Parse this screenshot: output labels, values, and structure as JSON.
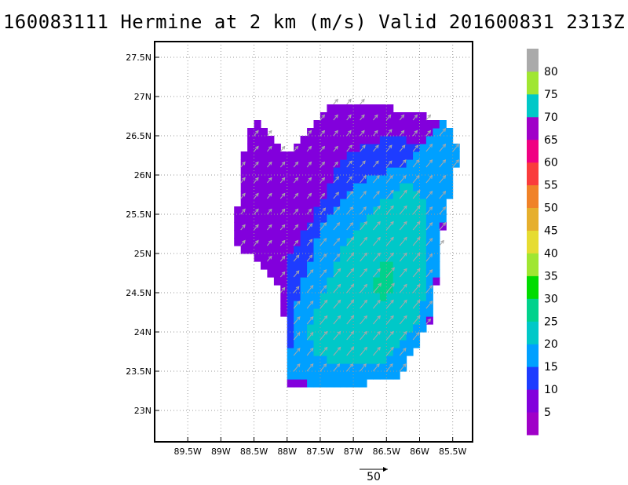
{
  "title": "160083111 Hermine at 2 km (m/s) Valid 201600831 2313Z",
  "chart_data": {
    "type": "heatmap",
    "title": "160083111 Hermine at 2 km (m/s) Valid 201600831 2313Z",
    "x_ticks": [
      "89.5W",
      "89W",
      "88.5W",
      "88W",
      "87.5W",
      "87W",
      "86.5W",
      "86W",
      "85.5W"
    ],
    "y_ticks": [
      "27.5N",
      "27N",
      "26.5N",
      "26N",
      "25.5N",
      "25N",
      "24.5N",
      "24N",
      "23.5N",
      "23N"
    ],
    "xlim": [
      -90,
      -85.2
    ],
    "ylim": [
      22.6,
      27.7
    ],
    "grid": true,
    "colorbar": {
      "labels": [
        "5",
        "10",
        "15",
        "20",
        "25",
        "30",
        "35",
        "40",
        "45",
        "50",
        "55",
        "60",
        "65",
        "70",
        "75",
        "80"
      ],
      "colors": [
        "#a000c8",
        "#8200dc",
        "#1e3cff",
        "#00a0ff",
        "#00c8c8",
        "#00d28c",
        "#00dc00",
        "#a0e632",
        "#e6dc32",
        "#e6af2d",
        "#f08228",
        "#fa3c3c",
        "#f00082",
        "#a000c8",
        "#00c8c8",
        "#a0e632",
        "#aaaaaa"
      ]
    },
    "reference_vector": {
      "label": "50",
      "speed": 50
    },
    "regions": [
      {
        "name": "outer",
        "speed": 7,
        "polygon": [
          [
            -88.8,
            25.1
          ],
          [
            -88.7,
            26.2
          ],
          [
            -88.5,
            26.7
          ],
          [
            -88.0,
            26.3
          ],
          [
            -87.6,
            26.7
          ],
          [
            -87.3,
            26.95
          ],
          [
            -86.8,
            26.9
          ],
          [
            -86.0,
            26.8
          ],
          [
            -85.6,
            26.6
          ],
          [
            -85.5,
            26.2
          ],
          [
            -85.7,
            25.0
          ],
          [
            -85.8,
            24.2
          ],
          [
            -86.3,
            23.5
          ],
          [
            -87.0,
            23.4
          ],
          [
            -88.0,
            23.3
          ],
          [
            -88.0,
            23.9
          ],
          [
            -88.1,
            24.5
          ],
          [
            -88.4,
            24.9
          ]
        ]
      },
      {
        "name": "band10",
        "speed": 12,
        "polygon": [
          [
            -88.0,
            24.9
          ],
          [
            -87.6,
            25.5
          ],
          [
            -87.1,
            26.3
          ],
          [
            -86.5,
            26.5
          ],
          [
            -85.9,
            26.4
          ],
          [
            -85.7,
            25.5
          ],
          [
            -85.8,
            24.3
          ],
          [
            -86.3,
            23.4
          ],
          [
            -87.3,
            23.3
          ],
          [
            -88.0,
            23.4
          ],
          [
            -88.05,
            24.3
          ]
        ]
      },
      {
        "name": "band15",
        "speed": 17,
        "polygon": [
          [
            -87.9,
            24.3
          ],
          [
            -87.5,
            25.3
          ],
          [
            -87.0,
            25.9
          ],
          [
            -86.3,
            26.1
          ],
          [
            -85.6,
            26.7
          ],
          [
            -85.4,
            26.3
          ],
          [
            -85.7,
            25.2
          ],
          [
            -85.8,
            24.3
          ],
          [
            -86.3,
            23.4
          ],
          [
            -87.4,
            23.3
          ],
          [
            -88.0,
            23.4
          ]
        ]
      },
      {
        "name": "core",
        "speed": 22,
        "polygon": [
          [
            -87.7,
            24.0
          ],
          [
            -87.2,
            25.0
          ],
          [
            -86.8,
            25.5
          ],
          [
            -86.2,
            25.9
          ],
          [
            -85.9,
            25.6
          ],
          [
            -85.9,
            24.6
          ],
          [
            -86.1,
            24.0
          ],
          [
            -86.6,
            23.6
          ],
          [
            -87.2,
            23.6
          ],
          [
            -87.6,
            23.7
          ]
        ]
      },
      {
        "name": "peak",
        "speed": 27,
        "polygon": [
          [
            -86.7,
            24.5
          ],
          [
            -86.6,
            24.85
          ],
          [
            -86.4,
            24.9
          ],
          [
            -86.35,
            24.6
          ],
          [
            -86.5,
            24.4
          ]
        ]
      }
    ]
  }
}
